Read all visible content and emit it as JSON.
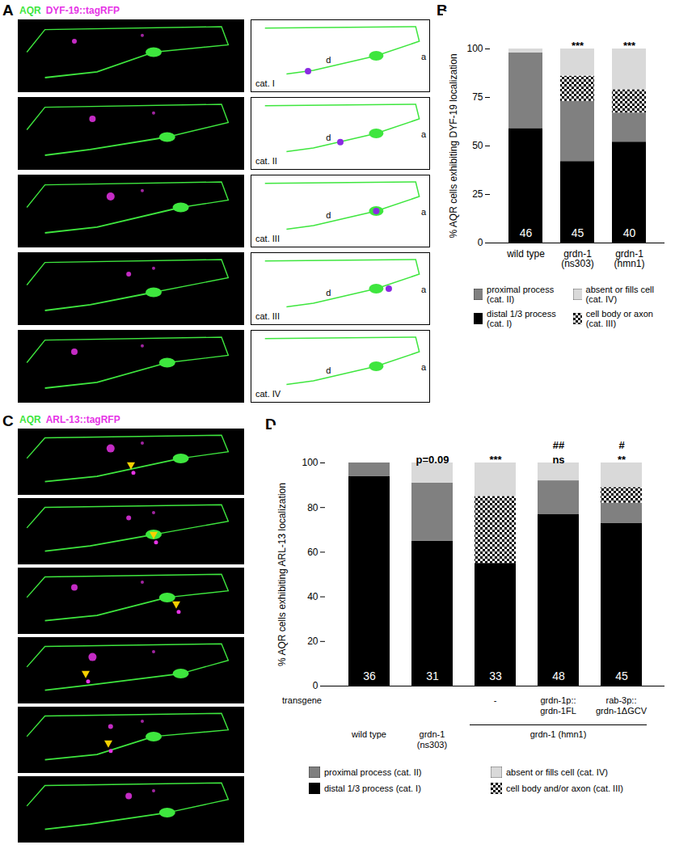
{
  "figure": {
    "panel_A": {
      "label": "A",
      "channels": [
        {
          "text": "AQR",
          "color": "#3ee63e"
        },
        {
          "text": "DYF-19::tagRFP",
          "color": "#e633e6"
        }
      ],
      "schematics": [
        {
          "category": "cat. I",
          "axon": "a",
          "dendrite": "d"
        },
        {
          "category": "cat. II",
          "axon": "a",
          "dendrite": "d"
        },
        {
          "category": "cat. III",
          "axon": "a",
          "dendrite": "d"
        },
        {
          "category": "cat. III",
          "axon": "a",
          "dendrite": "d"
        },
        {
          "category": "cat. IV",
          "axon": "a",
          "dendrite": "d"
        }
      ]
    },
    "panel_C": {
      "label": "C",
      "channels": [
        {
          "text": "AQR",
          "color": "#3ee63e"
        },
        {
          "text": "ARL-13::tagRFP",
          "color": "#e633e6"
        }
      ],
      "images": [
        {
          "arrowhead": true
        },
        {
          "arrowhead": true
        },
        {
          "arrowhead": true
        },
        {
          "arrowhead": true
        },
        {
          "arrowhead": true
        },
        {
          "arrowhead": false
        }
      ]
    }
  },
  "chart_data": [
    {
      "type": "bar",
      "panel": "B",
      "stacked": true,
      "legend": "bottom",
      "categories": [
        "wild type",
        "grdn-1 (ns303)",
        "grdn-1 (hmn1)"
      ],
      "series": [
        {
          "name": "distal 1/3 process (cat. I)",
          "color": "#000000",
          "values": [
            59,
            42,
            52
          ]
        },
        {
          "name": "proximal process (cat. II)",
          "color": "#808080",
          "values": [
            39,
            31,
            15
          ]
        },
        {
          "name": "cell body or axon (cat. III)",
          "color": "#000000",
          "marker": "checkerboard",
          "values": [
            0,
            13,
            12
          ]
        },
        {
          "name": "absent or fills cell (cat. IV)",
          "color": "#d9d9d9",
          "values": [
            2,
            14,
            21
          ]
        }
      ],
      "ylabel": "% AQR cells exhibiting DYF-19 localization",
      "ylim": [
        0,
        100
      ],
      "yticks": [
        0,
        25,
        50,
        75,
        100
      ],
      "n": [
        46,
        45,
        40
      ],
      "significance": [
        null,
        "***",
        "***"
      ]
    },
    {
      "type": "bar",
      "panel": "D",
      "stacked": true,
      "legend": "bottom",
      "tick_labels": "y",
      "categories": [
        "wild type",
        "grdn-1 (ns303)",
        "grdn-1 (hmn1)",
        null,
        null
      ],
      "transgene_label": "transgene",
      "transgenes": [
        null,
        null,
        "-",
        "grdn-1p::grdn-1FL",
        "rab-3p::grdn-1ΔGCV"
      ],
      "series": [
        {
          "name": "distal 1/3 process (cat. I)",
          "color": "#000000",
          "values": [
            94,
            65,
            55,
            77,
            73
          ]
        },
        {
          "name": "proximal process (cat. II)",
          "color": "#808080",
          "values": [
            6,
            26,
            0,
            15,
            9
          ]
        },
        {
          "name": "cell body and/or axon (cat. III)",
          "color": "#000000",
          "marker": "checkerboard",
          "values": [
            0,
            0,
            30,
            0,
            7
          ]
        },
        {
          "name": "absent or fills cell (cat. IV)",
          "color": "#d9d9d9",
          "values": [
            0,
            9,
            15,
            8,
            11
          ]
        }
      ],
      "ylabel": "% AQR cells exhibiting ARL-13 localization",
      "ylim": [
        0,
        100
      ],
      "yticks": [
        0,
        20,
        40,
        60,
        80,
        100
      ],
      "n": [
        36,
        31,
        33,
        48,
        45
      ],
      "significance": [
        null,
        "p=0.09",
        "***",
        "ns",
        "**"
      ],
      "rescue_significance": [
        null,
        null,
        null,
        "##",
        "#"
      ]
    }
  ]
}
